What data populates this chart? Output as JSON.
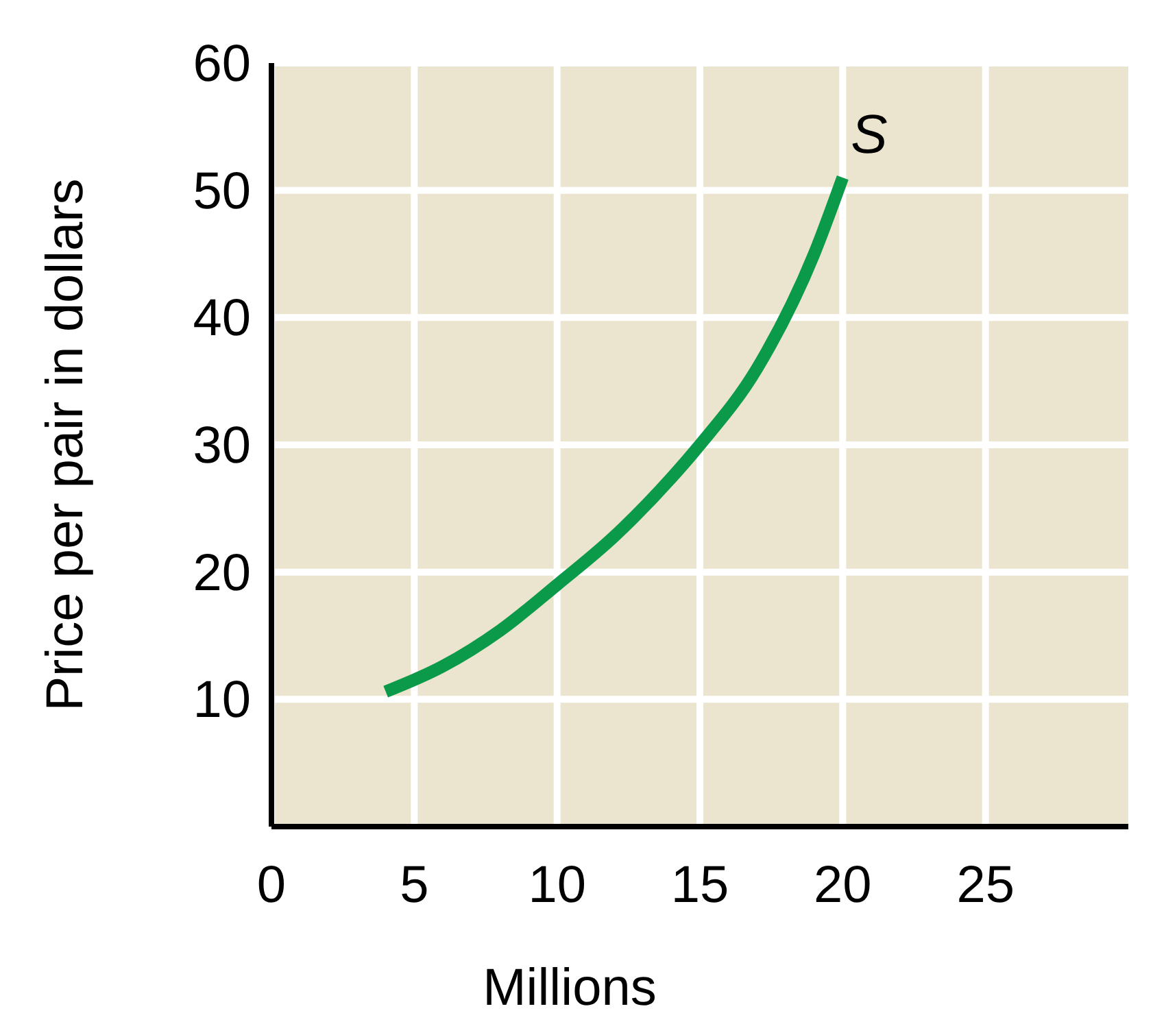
{
  "chart_data": {
    "type": "line",
    "xlabel": "Millions",
    "ylabel": "Price per pair in dollars",
    "xlim": [
      0,
      30
    ],
    "ylim": [
      0,
      60
    ],
    "xticks": [
      0,
      5,
      10,
      15,
      20,
      25
    ],
    "yticks": [
      10,
      20,
      30,
      40,
      50,
      60
    ],
    "grid": true,
    "series": [
      {
        "name": "S",
        "color": "#0a9a4a",
        "x": [
          4,
          6,
          8,
          10,
          12,
          14,
          15,
          17,
          19,
          20
        ],
        "values": [
          10.6,
          12.6,
          15.4,
          19,
          22.8,
          27.4,
          30,
          36,
          45,
          51
        ]
      }
    ]
  }
}
